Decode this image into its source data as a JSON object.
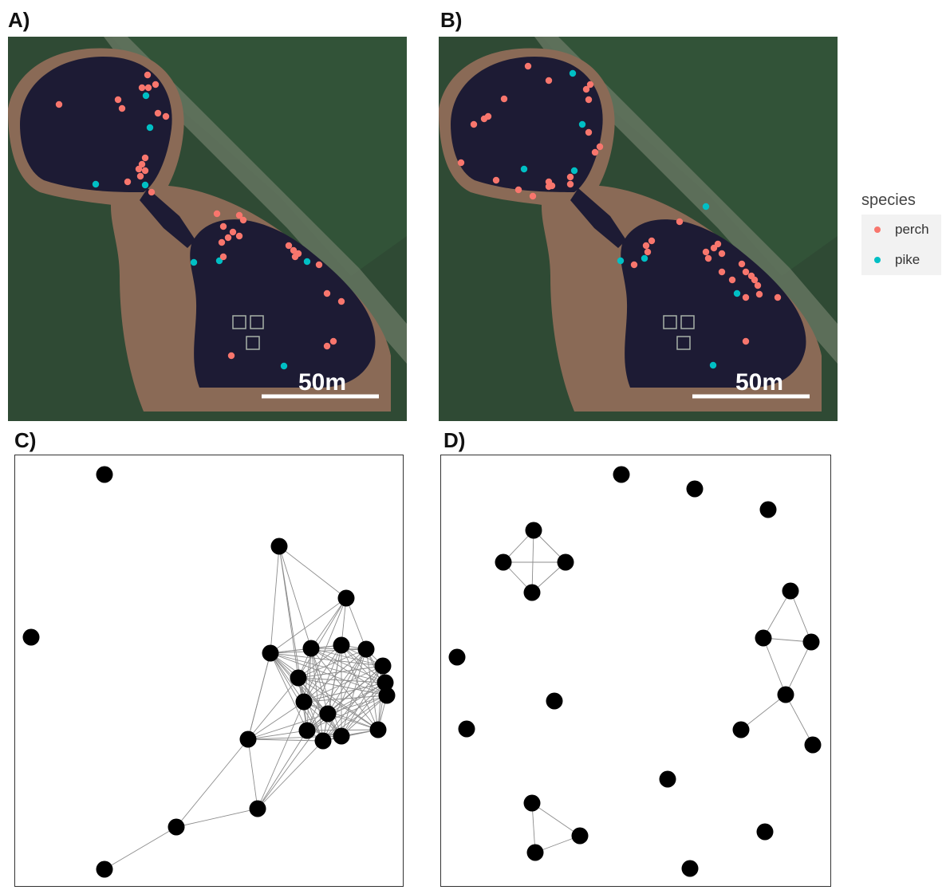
{
  "panels": {
    "a": {
      "label": "A)",
      "scale_label": "50m"
    },
    "b": {
      "label": "B)",
      "scale_label": "50m"
    },
    "c": {
      "label": "C)"
    },
    "d": {
      "label": "D)"
    }
  },
  "legend": {
    "title": "species",
    "items": [
      {
        "label": "perch",
        "color": "#F8766D"
      },
      {
        "label": "pike",
        "color": "#00BFC4"
      }
    ]
  },
  "colors": {
    "water": "#1d1b34",
    "forest": "#2f4a34",
    "shore": "#8a6a56",
    "perch": "#F8766D",
    "pike": "#00BFC4",
    "node": "#000000",
    "edge": "#8c8c8c"
  }
}
